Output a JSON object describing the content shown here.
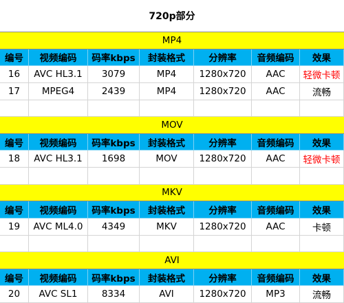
{
  "title": "720p部分",
  "sections": [
    {
      "name": "MP4",
      "header": [
        "编号",
        "视频编码",
        "码率kbps",
        "封装格式",
        "分辨率",
        "音频编码",
        "效果"
      ],
      "rows": [
        [
          "16",
          "AVC HL3.1",
          "3079",
          "MP4",
          "1280x720",
          "AAC",
          {
            "text": "轻微卡顿",
            "color": "#ff0000"
          }
        ],
        [
          "17",
          "MPEG4",
          "2439",
          "MP4",
          "1280x720",
          "AAC",
          "流畅"
        ]
      ]
    },
    {
      "name": "MOV",
      "header": [
        "编号",
        "视频编码",
        "码率kbps",
        "封装格式",
        "分辨率",
        "音频编码",
        "效果"
      ],
      "rows": [
        [
          "18",
          "AVC HL3.1",
          "1698",
          "MOV",
          "1280x720",
          "AAC",
          {
            "text": "轻微卡顿",
            "color": "#ff0000"
          }
        ]
      ]
    },
    {
      "name": "MKV",
      "header": [
        "编号",
        "视频编码",
        "码率kbps",
        "封装格式",
        "分辨率",
        "音频编码",
        "效果"
      ],
      "rows": [
        [
          "19",
          "AVC ML4.0",
          "4349",
          "MKV",
          "1280x720",
          "AAC",
          "卡顿"
        ]
      ]
    },
    {
      "name": "AVI",
      "header": [
        "编号",
        "视频编码",
        "码率kbps",
        "封装格式",
        "分辨率",
        "音频编码",
        "效果"
      ],
      "rows": [
        [
          "20",
          "AVC SL1",
          "8334",
          "AVI",
          "1280x720",
          "MP3",
          "流畅"
        ]
      ]
    }
  ]
}
